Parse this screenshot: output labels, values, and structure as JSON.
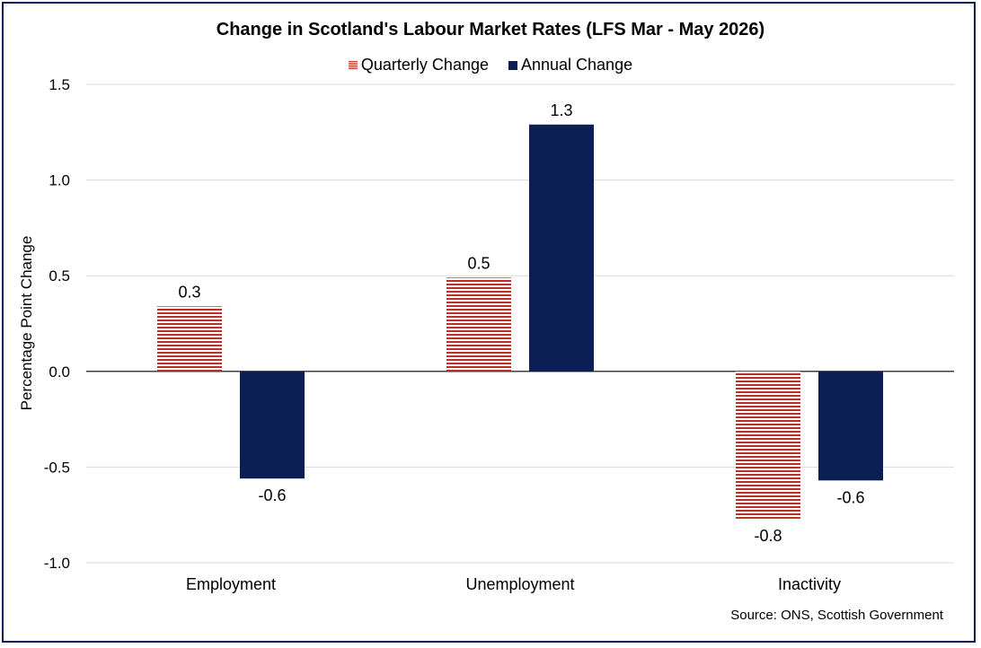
{
  "chart_data": {
    "type": "bar",
    "title": "Change in Scotland's Labour Market Rates (LFS Mar - May 2026)",
    "ylabel": "Percentage Point Change",
    "xlabel": "",
    "categories": [
      "Employment",
      "Unemployment",
      "Inactivity"
    ],
    "series": [
      {
        "name": "Quarterly Change",
        "values": [
          0.34,
          0.49,
          -0.77
        ],
        "labels": [
          "0.3",
          "0.5",
          "-0.8"
        ],
        "color": "#c0392b",
        "pattern": "horizontal-stripes"
      },
      {
        "name": "Annual Change",
        "values": [
          -0.56,
          1.29,
          -0.57
        ],
        "labels": [
          "-0.6",
          "1.3",
          "-0.6"
        ],
        "color": "#0c1f54",
        "pattern": "solid"
      }
    ],
    "ylim": [
      -1.0,
      1.5
    ],
    "yticks": [
      "-1.0",
      "-0.5",
      "0.0",
      "0.5",
      "1.0",
      "1.5"
    ],
    "ytick_values": [
      -1.0,
      -0.5,
      0.0,
      0.5,
      1.0,
      1.5
    ],
    "grid": true,
    "legend_position": "top-center"
  },
  "source": "Source: ONS, Scottish Government"
}
